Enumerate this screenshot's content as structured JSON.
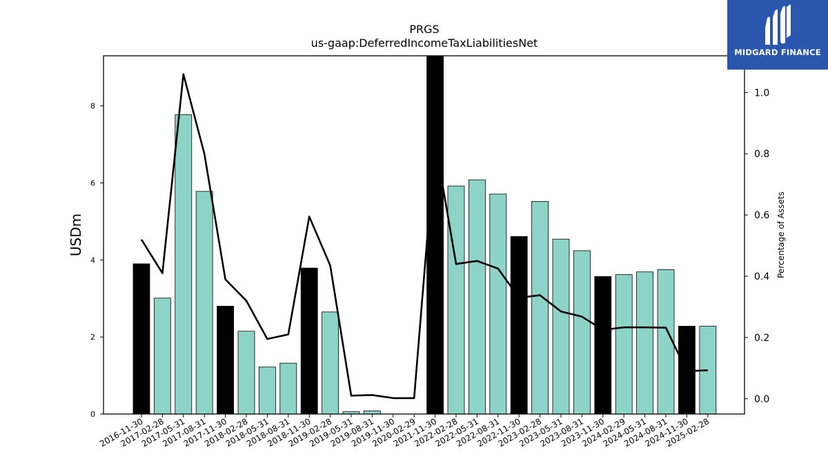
{
  "chart_data": {
    "type": "bar",
    "title": "PRGS",
    "subtitle": "us-gaap:DeferredIncomeTaxLiabilitiesNet",
    "ylabel": "USDm",
    "y2label": "Percentage of Assets",
    "ylim": [
      0,
      9.3
    ],
    "y2lim": [
      -0.05,
      1.12
    ],
    "yticks": [
      0,
      2,
      4,
      6,
      8
    ],
    "y2ticks": [
      "0.0",
      "0.2",
      "0.4",
      "0.6",
      "0.8",
      "1.0"
    ],
    "categories": [
      "2016-11-30",
      "2017-02-28",
      "2017-05-31",
      "2017-08-31",
      "2017-11-30",
      "2018-02-28",
      "2018-05-31",
      "2018-08-31",
      "2018-11-30",
      "2019-02-28",
      "2019-05-31",
      "2019-08-31",
      "2019-11-30",
      "2020-02-29",
      "2021-11-30",
      "2022-02-28",
      "2022-05-31",
      "2022-08-31",
      "2022-11-30",
      "2023-02-28",
      "2023-05-31",
      "2023-08-31",
      "2023-11-30",
      "2024-02-29",
      "2024-05-31",
      "2024-08-31",
      "2024-11-30",
      "2025-02-28"
    ],
    "series": [
      {
        "values": [
          3.9,
          3.01,
          7.77,
          5.78,
          2.8,
          2.15,
          1.22,
          1.32,
          3.79,
          2.65,
          0.06,
          0.08,
          0,
          0,
          9.3,
          5.92,
          6.08,
          5.71,
          4.61,
          5.52,
          4.54,
          4.24,
          3.57,
          3.62,
          3.69,
          3.75,
          2.28,
          2.28
        ],
        "fiscal_year_end": [
          true,
          false,
          false,
          false,
          true,
          false,
          false,
          false,
          true,
          false,
          false,
          false,
          true,
          false,
          true,
          false,
          false,
          false,
          true,
          false,
          false,
          false,
          true,
          false,
          false,
          false,
          true,
          false
        ],
        "colors": {
          "fiscal_year_end": "#000000",
          "quarter": "#8dd3c7"
        }
      },
      {
        "axis": "right",
        "type": "line",
        "color": "#000000",
        "values": [
          0.52,
          0.41,
          1.06,
          0.8,
          0.39,
          0.32,
          0.195,
          0.21,
          0.595,
          0.435,
          0.01,
          0.012,
          0.002,
          0.002,
          0.84,
          0.44,
          0.45,
          0.425,
          0.33,
          0.338,
          0.285,
          0.268,
          0.225,
          0.233,
          0.233,
          0.232,
          0.09,
          0.093
        ]
      }
    ],
    "grid": false
  },
  "logo": {
    "text": "MIDGARD FINANCE",
    "background": "#2a57ad"
  }
}
